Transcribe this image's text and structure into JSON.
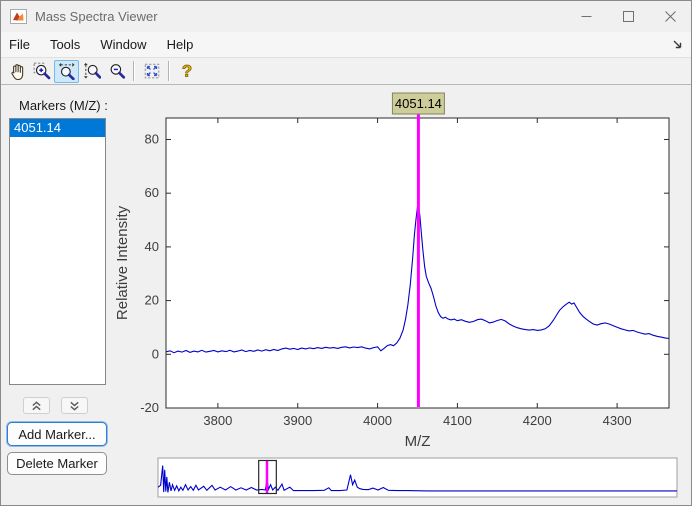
{
  "window": {
    "title": "Mass Spectra Viewer",
    "controls": [
      "minimize",
      "maximize",
      "close"
    ]
  },
  "menu": {
    "items": [
      "File",
      "Tools",
      "Window",
      "Help"
    ],
    "dock_icon": "dock-arrow-icon"
  },
  "toolbar": {
    "tools": [
      {
        "name": "pan-icon",
        "selected": false
      },
      {
        "name": "zoom-in-icon",
        "selected": false
      },
      {
        "name": "zoom-x-icon",
        "selected": true
      },
      {
        "name": "zoom-y-icon",
        "selected": false
      },
      {
        "name": "zoom-out-icon",
        "selected": false
      },
      {
        "name": "reset-view-icon",
        "selected": false
      },
      {
        "name": "help-icon",
        "selected": false
      }
    ],
    "highlight_color": "#CDE8F9"
  },
  "sidebar": {
    "label": "Markers (M/Z) :",
    "items": [
      "4051.14"
    ],
    "selected_index": 0,
    "scroll_icons": [
      "double-chevron-up-icon",
      "double-chevron-down-icon"
    ],
    "add_label": "Add Marker...",
    "delete_label": "Delete Marker",
    "selection_color": "#0078D7"
  },
  "chart_data": {
    "type": "line",
    "xlabel": "M/Z",
    "ylabel": "Relative Intensity",
    "xlim": [
      3735,
      4365
    ],
    "ylim": [
      -20,
      88
    ],
    "xticks": [
      3800,
      3900,
      4000,
      4100,
      4200,
      4300
    ],
    "yticks": [
      -20,
      0,
      20,
      40,
      60,
      80
    ],
    "grid": false,
    "line_color": "#0000CC",
    "axis_color": "#2b2b2b",
    "tick_label_color": "#3d3d3d",
    "marker": {
      "value": 4051.14,
      "label": "4051.14",
      "color": "#FF00FF",
      "label_bg": "#CDCD9A",
      "label_border": "#84845E"
    },
    "series": [
      {
        "name": "spectrum",
        "points": [
          [
            3735,
            0.9
          ],
          [
            3740,
            1.3
          ],
          [
            3745,
            0.6
          ],
          [
            3750,
            1.2
          ],
          [
            3755,
            0.8
          ],
          [
            3760,
            1.4
          ],
          [
            3765,
            0.7
          ],
          [
            3770,
            1.2
          ],
          [
            3775,
            0.9
          ],
          [
            3780,
            1.5
          ],
          [
            3785,
            0.8
          ],
          [
            3790,
            1.1
          ],
          [
            3795,
            1.4
          ],
          [
            3800,
            0.9
          ],
          [
            3805,
            1.3
          ],
          [
            3810,
            1.0
          ],
          [
            3815,
            1.5
          ],
          [
            3820,
            0.9
          ],
          [
            3825,
            1.2
          ],
          [
            3830,
            1.6
          ],
          [
            3835,
            1.0
          ],
          [
            3840,
            1.4
          ],
          [
            3845,
            1.1
          ],
          [
            3850,
            1.6
          ],
          [
            3855,
            1.2
          ],
          [
            3860,
            1.7
          ],
          [
            3865,
            1.3
          ],
          [
            3870,
            1.8
          ],
          [
            3875,
            1.4
          ],
          [
            3880,
            2.0
          ],
          [
            3885,
            2.3
          ],
          [
            3890,
            1.9
          ],
          [
            3895,
            2.2
          ],
          [
            3900,
            1.8
          ],
          [
            3905,
            2.3
          ],
          [
            3910,
            2.0
          ],
          [
            3915,
            2.4
          ],
          [
            3920,
            2.1
          ],
          [
            3925,
            2.5
          ],
          [
            3930,
            2.2
          ],
          [
            3935,
            2.6
          ],
          [
            3940,
            2.3
          ],
          [
            3945,
            2.5
          ],
          [
            3950,
            2.2
          ],
          [
            3955,
            2.6
          ],
          [
            3960,
            2.8
          ],
          [
            3965,
            2.4
          ],
          [
            3970,
            2.7
          ],
          [
            3975,
            2.5
          ],
          [
            3980,
            2.8
          ],
          [
            3985,
            2.3
          ],
          [
            3990,
            2.0
          ],
          [
            3995,
            2.5
          ],
          [
            4000,
            2.8
          ],
          [
            4004,
            1.3
          ],
          [
            4008,
            2.2
          ],
          [
            4012,
            3.2
          ],
          [
            4016,
            3.6
          ],
          [
            4020,
            3.2
          ],
          [
            4024,
            4.2
          ],
          [
            4028,
            6.0
          ],
          [
            4032,
            9.0
          ],
          [
            4035,
            13.0
          ],
          [
            4038,
            18.5
          ],
          [
            4041,
            26.0
          ],
          [
            4044,
            36.0
          ],
          [
            4046,
            44.0
          ],
          [
            4048,
            50.0
          ],
          [
            4050,
            55.0
          ],
          [
            4051,
            56.0
          ],
          [
            4053,
            51.5
          ],
          [
            4055,
            44.5
          ],
          [
            4057,
            38.0
          ],
          [
            4059,
            32.5
          ],
          [
            4061,
            29.0
          ],
          [
            4064,
            26.5
          ],
          [
            4067,
            24.5
          ],
          [
            4070,
            21.5
          ],
          [
            4073,
            18.0
          ],
          [
            4076,
            15.5
          ],
          [
            4079,
            14.0
          ],
          [
            4082,
            13.4
          ],
          [
            4085,
            13.8
          ],
          [
            4088,
            13.2
          ],
          [
            4092,
            12.8
          ],
          [
            4096,
            13.1
          ],
          [
            4100,
            12.5
          ],
          [
            4105,
            12.9
          ],
          [
            4110,
            12.3
          ],
          [
            4115,
            11.9
          ],
          [
            4120,
            12.2
          ],
          [
            4125,
            12.9
          ],
          [
            4130,
            13.1
          ],
          [
            4135,
            12.5
          ],
          [
            4140,
            11.7
          ],
          [
            4145,
            12.0
          ],
          [
            4150,
            12.6
          ],
          [
            4155,
            13.0
          ],
          [
            4160,
            12.4
          ],
          [
            4165,
            11.3
          ],
          [
            4170,
            10.5
          ],
          [
            4175,
            9.9
          ],
          [
            4180,
            9.5
          ],
          [
            4185,
            9.2
          ],
          [
            4190,
            9.0
          ],
          [
            4195,
            9.2
          ],
          [
            4200,
            8.9
          ],
          [
            4205,
            9.1
          ],
          [
            4210,
            9.5
          ],
          [
            4215,
            10.6
          ],
          [
            4220,
            12.6
          ],
          [
            4225,
            15.0
          ],
          [
            4228,
            16.4
          ],
          [
            4232,
            17.6
          ],
          [
            4236,
            18.6
          ],
          [
            4240,
            19.4
          ],
          [
            4243,
            18.7
          ],
          [
            4246,
            19.1
          ],
          [
            4249,
            17.6
          ],
          [
            4253,
            15.6
          ],
          [
            4257,
            14.2
          ],
          [
            4261,
            13.2
          ],
          [
            4265,
            12.3
          ],
          [
            4270,
            11.3
          ],
          [
            4275,
            10.9
          ],
          [
            4280,
            11.4
          ],
          [
            4285,
            11.7
          ],
          [
            4290,
            11.3
          ],
          [
            4295,
            10.7
          ],
          [
            4300,
            10.1
          ],
          [
            4305,
            9.5
          ],
          [
            4310,
            9.1
          ],
          [
            4315,
            8.7
          ],
          [
            4320,
            8.9
          ],
          [
            4325,
            8.3
          ],
          [
            4330,
            7.9
          ],
          [
            4335,
            7.5
          ],
          [
            4340,
            7.7
          ],
          [
            4345,
            7.1
          ],
          [
            4350,
            6.7
          ],
          [
            4355,
            6.4
          ],
          [
            4360,
            6.1
          ],
          [
            4365,
            5.9
          ]
        ]
      }
    ],
    "navigator": {
      "description": "full-spectrum overview strip; x and y are fractions of strip width/height",
      "points": [
        [
          0,
          0.22
        ],
        [
          0.005,
          0.28
        ],
        [
          0.009,
          0.92
        ],
        [
          0.011,
          0.06
        ],
        [
          0.013,
          0.78
        ],
        [
          0.015,
          0.08
        ],
        [
          0.017,
          0.55
        ],
        [
          0.019,
          0.05
        ],
        [
          0.022,
          0.38
        ],
        [
          0.025,
          0.1
        ],
        [
          0.028,
          0.3
        ],
        [
          0.032,
          0.12
        ],
        [
          0.036,
          0.26
        ],
        [
          0.04,
          0.1
        ],
        [
          0.044,
          0.22
        ],
        [
          0.048,
          0.12
        ],
        [
          0.053,
          0.3
        ],
        [
          0.058,
          0.13
        ],
        [
          0.063,
          0.24
        ],
        [
          0.068,
          0.12
        ],
        [
          0.073,
          0.28
        ],
        [
          0.078,
          0.13
        ],
        [
          0.088,
          0.25
        ],
        [
          0.094,
          0.12
        ],
        [
          0.104,
          0.28
        ],
        [
          0.11,
          0.13
        ],
        [
          0.12,
          0.22
        ],
        [
          0.13,
          0.13
        ],
        [
          0.14,
          0.24
        ],
        [
          0.15,
          0.13
        ],
        [
          0.16,
          0.2
        ],
        [
          0.17,
          0.13
        ],
        [
          0.18,
          0.21
        ],
        [
          0.19,
          0.13
        ],
        [
          0.2,
          0.15
        ],
        [
          0.207,
          0.13
        ],
        [
          0.21,
          0.48
        ],
        [
          0.213,
          0.15
        ],
        [
          0.217,
          0.3
        ],
        [
          0.221,
          0.13
        ],
        [
          0.226,
          0.22
        ],
        [
          0.231,
          0.12
        ],
        [
          0.239,
          0.32
        ],
        [
          0.243,
          0.12
        ],
        [
          0.254,
          0.22
        ],
        [
          0.261,
          0.11
        ],
        [
          0.28,
          0.11
        ],
        [
          0.3,
          0.11
        ],
        [
          0.32,
          0.12
        ],
        [
          0.329,
          0.2
        ],
        [
          0.334,
          0.11
        ],
        [
          0.35,
          0.11
        ],
        [
          0.364,
          0.13
        ],
        [
          0.371,
          0.62
        ],
        [
          0.375,
          0.3
        ],
        [
          0.379,
          0.45
        ],
        [
          0.384,
          0.22
        ],
        [
          0.389,
          0.17
        ],
        [
          0.395,
          0.15
        ],
        [
          0.405,
          0.14
        ],
        [
          0.414,
          0.19
        ],
        [
          0.424,
          0.13
        ],
        [
          0.434,
          0.21
        ],
        [
          0.444,
          0.12
        ],
        [
          0.46,
          0.11
        ],
        [
          0.48,
          0.11
        ],
        [
          0.52,
          0.1
        ],
        [
          0.6,
          0.1
        ],
        [
          0.7,
          0.1
        ],
        [
          0.8,
          0.1
        ],
        [
          0.9,
          0.1
        ],
        [
          1.0,
          0.1
        ]
      ],
      "selection_frac": [
        0.194,
        0.228
      ],
      "marker_frac": 0.21
    }
  }
}
